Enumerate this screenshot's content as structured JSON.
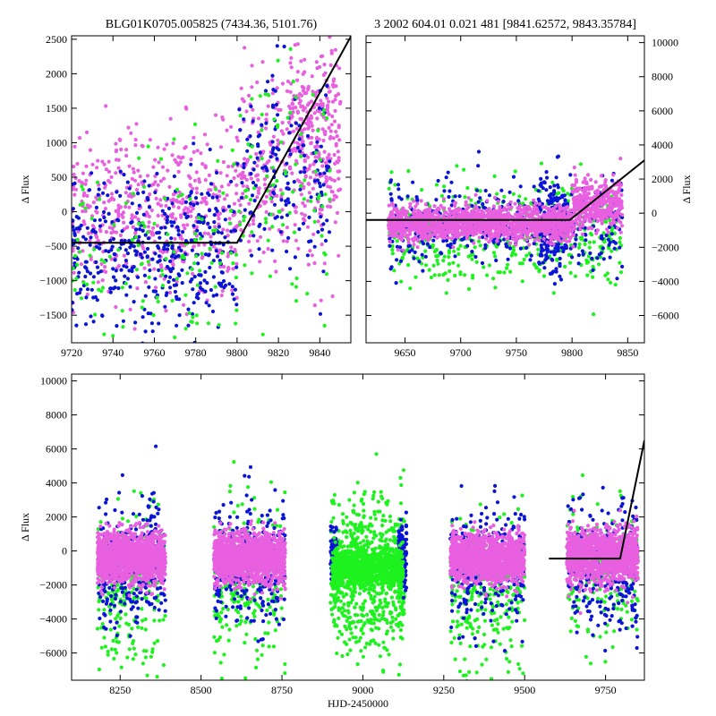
{
  "colors": {
    "pink": "#e85fe0",
    "blue": "#0a14d4",
    "green": "#1ef21e",
    "fit": "#000000"
  },
  "chart_data": [
    {
      "id": "panel-top-left",
      "type": "scatter",
      "title": "BLG01K0705.005825 (7434.36, 5101.76)",
      "xlabel": "",
      "ylabel": "Δ Flux",
      "xlim": [
        9720,
        9855
      ],
      "ylim": [
        -1900,
        2550
      ],
      "xticks": [
        9720,
        9740,
        9760,
        9780,
        9800,
        9820,
        9840
      ],
      "yticks": [
        -1500,
        -1000,
        -500,
        0,
        500,
        1000,
        1500,
        2000,
        2500
      ],
      "ytick_side": "left",
      "fit_line": {
        "x": [
          9720,
          9800,
          9855
        ],
        "y": [
          -450,
          -450,
          2540
        ]
      },
      "series": [
        {
          "name": "pink",
          "color": "#e85fe0",
          "clusters": [
            {
              "x_range": [
                9720,
                9800
              ],
              "y_mean": 0,
              "y_sd": 600,
              "n": 520
            },
            {
              "x_range": [
                9800,
                9850
              ],
              "y_mean": 700,
              "y_sd": 700,
              "n": 330
            },
            {
              "x_range": [
                9825,
                9850
              ],
              "y_mean": 1500,
              "y_sd": 600,
              "n": 160
            }
          ]
        },
        {
          "name": "blue",
          "color": "#0a14d4",
          "clusters": [
            {
              "x_range": [
                9720,
                9800
              ],
              "y_mean": -600,
              "y_sd": 550,
              "n": 420
            },
            {
              "x_range": [
                9800,
                9845
              ],
              "y_mean": 500,
              "y_sd": 700,
              "n": 170
            }
          ]
        },
        {
          "name": "green",
          "color": "#1ef21e",
          "clusters": [
            {
              "x_range": [
                9720,
                9800
              ],
              "y_mean": -800,
              "y_sd": 700,
              "n": 130
            },
            {
              "x_range": [
                9800,
                9845
              ],
              "y_mean": 300,
              "y_sd": 800,
              "n": 90
            }
          ]
        }
      ]
    },
    {
      "id": "panel-top-right",
      "type": "scatter",
      "title": "3 2002 604.01 0.021 481 [9841.62572, 9843.35784]",
      "xlabel": "",
      "ylabel": "Δ Flux",
      "xlim": [
        9615,
        9865
      ],
      "ylim": [
        -7600,
        10400
      ],
      "xticks": [
        9650,
        9700,
        9750,
        9800,
        9850
      ],
      "yticks": [
        -6000,
        -4000,
        -2000,
        0,
        2000,
        4000,
        6000,
        8000,
        10000
      ],
      "ytick_side": "right",
      "fit_line": {
        "x": [
          9615,
          9798,
          9865
        ],
        "y": [
          -400,
          -400,
          3100
        ]
      },
      "series": [
        {
          "name": "green",
          "color": "#1ef21e",
          "clusters": [
            {
              "x_range": [
                9635,
                9845
              ],
              "y_mean": -1200,
              "y_sd": 1500,
              "n": 500
            }
          ]
        },
        {
          "name": "blue",
          "color": "#0a14d4",
          "clusters": [
            {
              "x_range": [
                9635,
                9845
              ],
              "y_mean": -700,
              "y_sd": 1200,
              "n": 420
            },
            {
              "x_range": [
                9770,
                9795
              ],
              "y_mean": -800,
              "y_sd": 1500,
              "n": 200
            }
          ]
        },
        {
          "name": "pink",
          "color": "#e85fe0",
          "clusters": [
            {
              "x_range": [
                9635,
                9800
              ],
              "y_mean": -600,
              "y_sd": 500,
              "n": 1500
            },
            {
              "x_range": [
                9800,
                9845
              ],
              "y_mean": 500,
              "y_sd": 700,
              "n": 400
            }
          ]
        }
      ]
    },
    {
      "id": "panel-bottom",
      "type": "scatter",
      "title": "",
      "xlabel": "HJD-2450000",
      "ylabel": "Δ Flux",
      "xlim": [
        8100,
        9870
      ],
      "ylim": [
        -7600,
        10400
      ],
      "xticks": [
        8250,
        8500,
        8750,
        9000,
        9250,
        9500,
        9750
      ],
      "yticks": [
        -6000,
        -4000,
        -2000,
        0,
        2000,
        4000,
        6000,
        8000,
        10000
      ],
      "ytick_side": "left",
      "fit_line": {
        "x": [
          9575,
          9795,
          9870
        ],
        "y": [
          -450,
          -450,
          6500
        ]
      },
      "series": [
        {
          "name": "green",
          "color": "#1ef21e",
          "clusters": [
            {
              "x_range": [
                8180,
                8390
              ],
              "y_mean": -2200,
              "y_sd": 2200,
              "n": 260
            },
            {
              "x_range": [
                8540,
                8760
              ],
              "y_mean": -2000,
              "y_sd": 2200,
              "n": 240
            },
            {
              "x_range": [
                8900,
                9130
              ],
              "y_mean": -1500,
              "y_sd": 2400,
              "n": 650
            },
            {
              "x_range": [
                9270,
                9500
              ],
              "y_mean": -2500,
              "y_sd": 2300,
              "n": 280
            },
            {
              "x_range": [
                9630,
                9850
              ],
              "y_mean": -1500,
              "y_sd": 2000,
              "n": 220
            }
          ]
        },
        {
          "name": "blue",
          "color": "#0a14d4",
          "clusters": [
            {
              "x_range": [
                8180,
                8390
              ],
              "y_mean": -700,
              "y_sd": 1800,
              "n": 320
            },
            {
              "x_range": [
                8540,
                8760
              ],
              "y_mean": -700,
              "y_sd": 1800,
              "n": 320
            },
            {
              "x_range": [
                8900,
                8920
              ],
              "y_mean": -400,
              "y_sd": 900,
              "n": 90
            },
            {
              "x_range": [
                9110,
                9135
              ],
              "y_mean": -400,
              "y_sd": 900,
              "n": 110
            },
            {
              "x_range": [
                9270,
                9500
              ],
              "y_mean": -900,
              "y_sd": 1800,
              "n": 300
            },
            {
              "x_range": [
                9630,
                9850
              ],
              "y_mean": -900,
              "y_sd": 1800,
              "n": 300
            }
          ]
        },
        {
          "name": "pink",
          "color": "#e85fe0",
          "clusters": [
            {
              "x_range": [
                8180,
                8390
              ],
              "y_mean": -400,
              "y_sd": 700,
              "n": 1500
            },
            {
              "x_range": [
                8540,
                8760
              ],
              "y_mean": -400,
              "y_sd": 700,
              "n": 1500
            },
            {
              "x_range": [
                9270,
                9500
              ],
              "y_mean": -400,
              "y_sd": 700,
              "n": 1400
            },
            {
              "x_range": [
                9630,
                9850
              ],
              "y_mean": -300,
              "y_sd": 800,
              "n": 1200
            }
          ]
        },
        {
          "name": "green-band",
          "color": "#1ef21e",
          "clusters": [
            {
              "x_range": [
                8905,
                9125
              ],
              "y_mean": -1000,
              "y_sd": 600,
              "n": 900
            }
          ]
        }
      ]
    }
  ]
}
